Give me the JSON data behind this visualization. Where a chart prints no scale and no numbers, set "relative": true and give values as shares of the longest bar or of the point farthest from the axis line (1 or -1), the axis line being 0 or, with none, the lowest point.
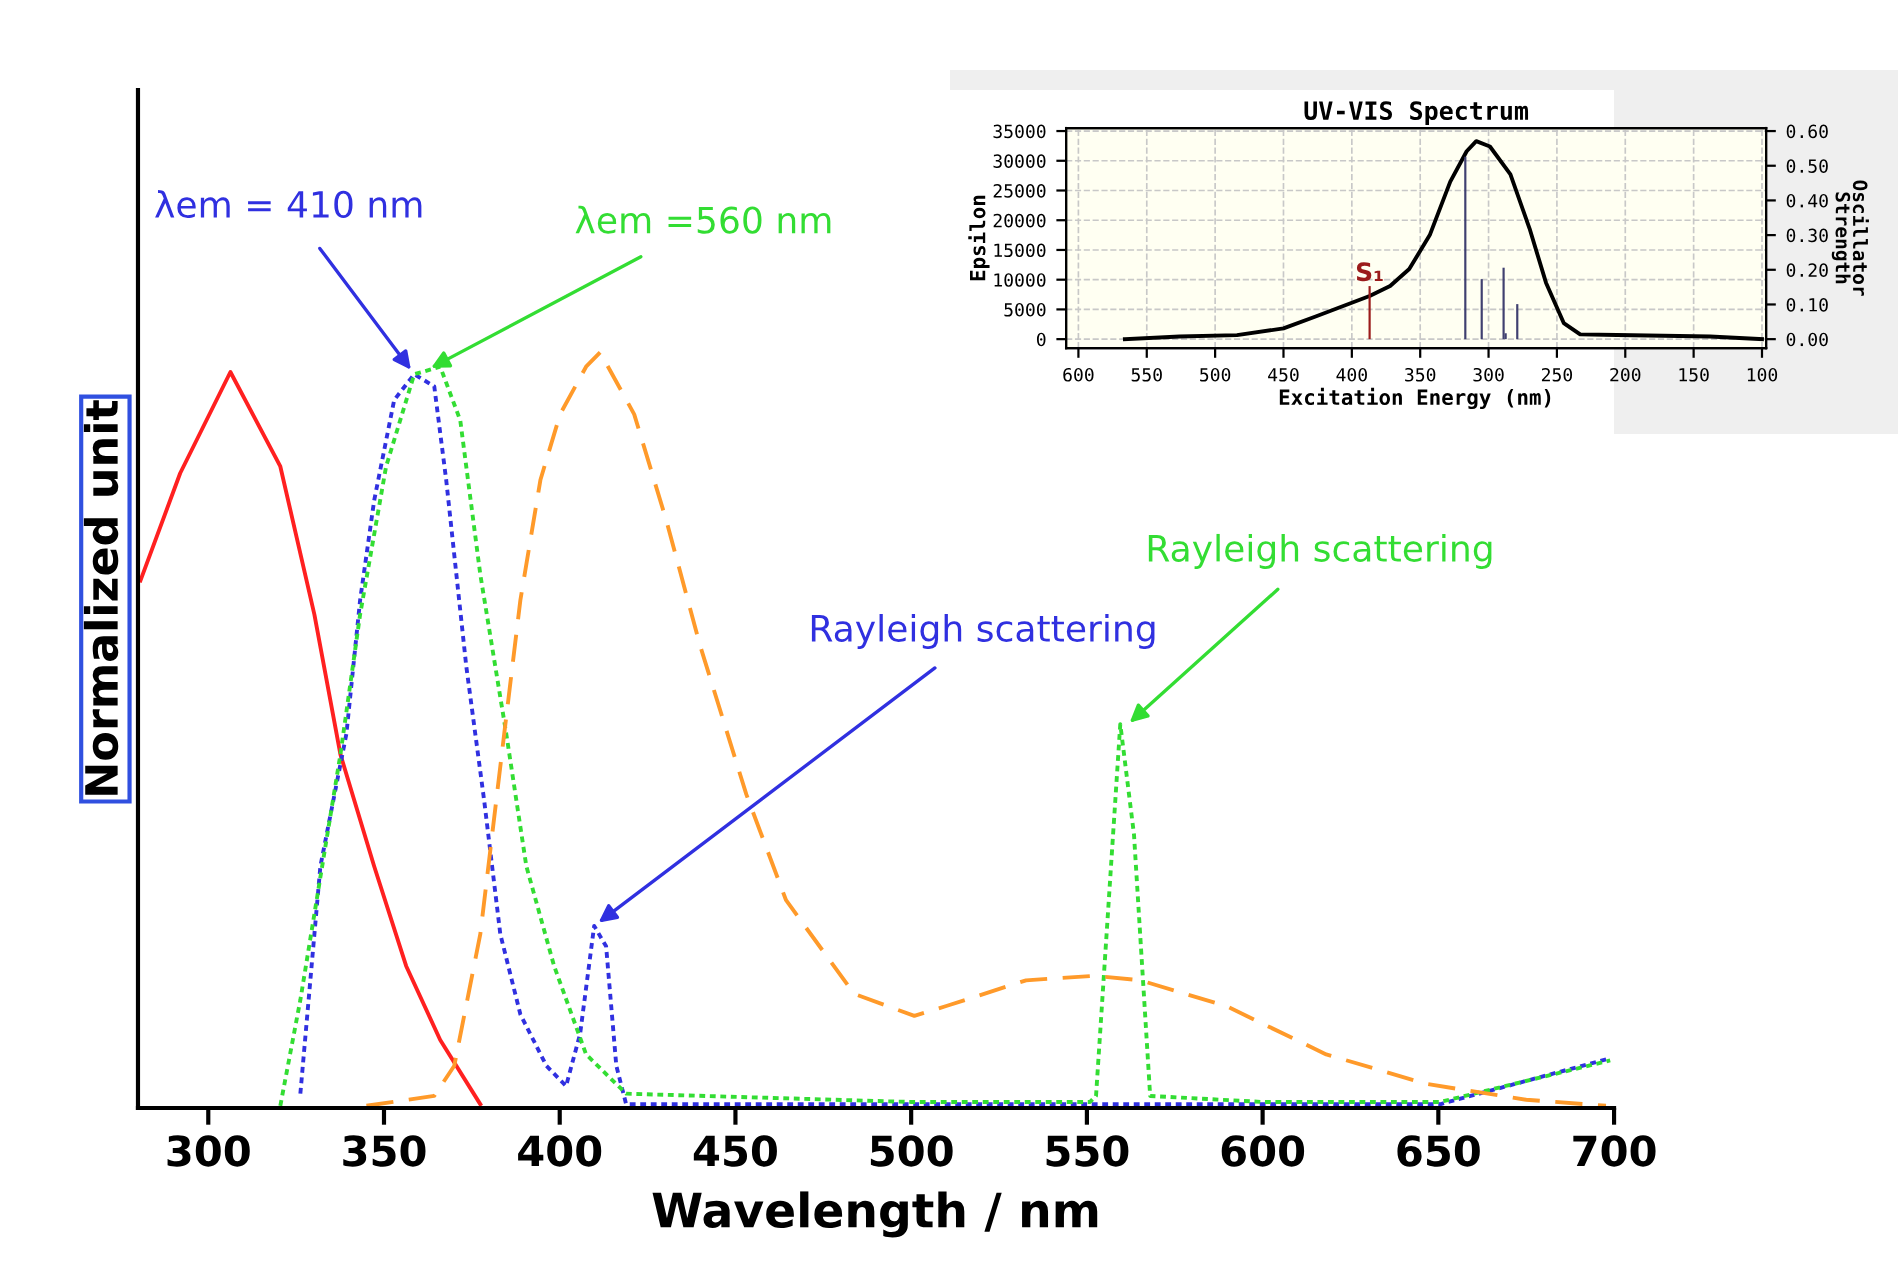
{
  "chart_data": [
    {
      "type": "line",
      "relative": true,
      "xlabel": "Wavelength / nm",
      "ylabel": "Normalized unit",
      "xlim": [
        280,
        700
      ],
      "xticks": [
        300,
        350,
        400,
        450,
        500,
        550,
        600,
        650,
        700
      ],
      "grid": false,
      "tick_labels": "x",
      "series": [
        {
          "color": "#ff2020",
          "line_style": "solid",
          "x": [
            280.7,
            292,
            306.3,
            320.5,
            330.2,
            337.6,
            347.2,
            356.3,
            366,
            377.4
          ],
          "values": [
            0.698,
            0.84,
            0.974,
            0.849,
            0.653,
            0.468,
            0.32,
            0.188,
            0.09,
            0.005
          ]
        },
        {
          "color": "#3030e0",
          "line_style": "dotted",
          "x": [
            326.2,
            331.9,
            339.3,
            343.2,
            347.2,
            352.9,
            358.6,
            364.3,
            367.7,
            373.4,
            378.5,
            383.1,
            388.8,
            396.2,
            401.8,
            405.8,
            409.8,
            413.2,
            416.1,
            418.9,
            500,
            600,
            650.5,
            698.9
          ],
          "values": [
            0.019,
            0.32,
            0.495,
            0.672,
            0.804,
            0.937,
            0.971,
            0.955,
            0.831,
            0.585,
            0.407,
            0.23,
            0.124,
            0.056,
            0.029,
            0.098,
            0.241,
            0.214,
            0.056,
            0.005,
            0.005,
            0.005,
            0.005,
            0.066
          ]
        },
        {
          "color": "#33dd33",
          "line_style": "dotted",
          "x": [
            320.5,
            326.2,
            337.6,
            343.2,
            350.6,
            358.6,
            366,
            371.7,
            377.4,
            384.8,
            390.5,
            398.4,
            407.5,
            418.9,
            500,
            550.9,
            552.6,
            559.5,
            563.4,
            568,
            600,
            650.5,
            698.9
          ],
          "values": [
            0.003,
            0.143,
            0.468,
            0.653,
            0.849,
            0.971,
            0.981,
            0.91,
            0.706,
            0.495,
            0.32,
            0.188,
            0.071,
            0.019,
            0.008,
            0.008,
            0.016,
            0.508,
            0.362,
            0.016,
            0.008,
            0.008,
            0.063
          ]
        },
        {
          "color": "#ff9a2a",
          "line_style": "dashed",
          "x": [
            345,
            364.3,
            370,
            377.4,
            384.2,
            388.8,
            394.5,
            400.1,
            407.5,
            411.5,
            421.2,
            430.3,
            440,
            453.1,
            464.4,
            483.8,
            500.9,
            510,
            532.7,
            552.1,
            565.2,
            589.6,
            618.1,
            646.5,
            675,
            697.7
          ],
          "values": [
            0.003,
            0.016,
            0.056,
            0.23,
            0.495,
            0.672,
            0.831,
            0.918,
            0.981,
            1,
            0.918,
            0.778,
            0.611,
            0.415,
            0.275,
            0.151,
            0.122,
            0.135,
            0.169,
            0.175,
            0.169,
            0.135,
            0.071,
            0.032,
            0.011,
            0.003
          ]
        }
      ],
      "annotations": [
        {
          "text": "λem = 410 nm",
          "x": 358.6,
          "y": 0.971
        },
        {
          "text": "λem =560 nm",
          "x": 362,
          "y": 0.976
        },
        {
          "text": "Rayleigh scattering",
          "x": 409.8,
          "y": 0.241
        },
        {
          "text": "Rayleigh scattering",
          "x": 561,
          "y": 0.505
        }
      ]
    },
    {
      "type": "line",
      "title": "UV-VIS Spectrum",
      "xlabel": "Excitation Energy (nm)",
      "ylabel": "Epsilon",
      "y2label": "Oscillator\nStrength",
      "xlim": [
        609,
        97
      ],
      "xticks": [
        600,
        550,
        500,
        450,
        400,
        350,
        300,
        250,
        200,
        150,
        100
      ],
      "ylim": [
        -1500,
        35500
      ],
      "yticks": [
        0,
        5000,
        10000,
        15000,
        20000,
        25000,
        30000,
        35000
      ],
      "y2lim": [
        -0.0257,
        0.6086
      ],
      "y2ticks": [
        {
          "value": 0,
          "label": "0.00"
        },
        {
          "value": 0.1,
          "label": "0.10"
        },
        {
          "value": 0.2,
          "label": "0.20"
        },
        {
          "value": 0.3,
          "label": "0.30"
        },
        {
          "value": 0.4,
          "label": "0.40"
        },
        {
          "value": 0.5,
          "label": "0.50"
        },
        {
          "value": 0.6,
          "label": "0.60"
        }
      ],
      "grid": true,
      "series": [
        {
          "color": "#000000",
          "x": [
            566,
            526,
            484,
            450,
            426,
            387,
            372,
            358,
            343,
            328,
            316,
            309,
            299,
            284,
            270,
            258,
            245,
            233,
            206,
            138,
            100
          ],
          "values": [
            0,
            450,
            680,
            1800,
            3850,
            7250,
            8950,
            11800,
            17500,
            26500,
            31600,
            33300,
            32400,
            27700,
            18600,
            9500,
            2700,
            800,
            700,
            450,
            0
          ]
        },
        {
          "type": "bar",
          "axis": "y2",
          "color": "#404070",
          "x": [
            317,
            305,
            289,
            287.5,
            279
          ],
          "values": [
            0.526,
            0.173,
            0.206,
            0.017,
            0.101
          ]
        },
        {
          "type": "bar",
          "axis": "y2",
          "name": "S₁",
          "color": "#9b1b1b",
          "x": [
            387
          ],
          "values": [
            0.153
          ]
        }
      ]
    }
  ]
}
